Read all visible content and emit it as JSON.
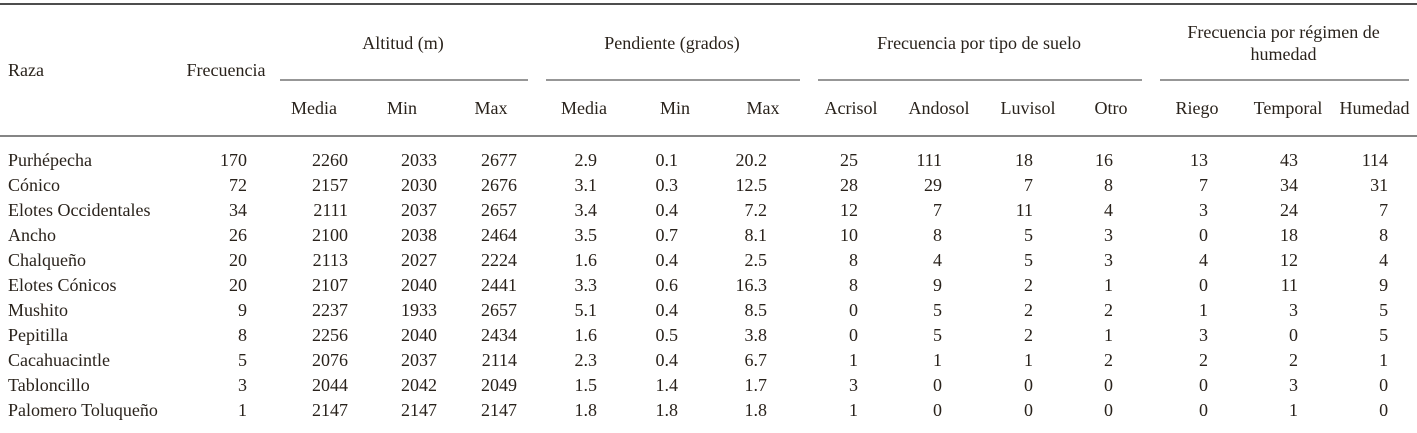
{
  "table": {
    "col_raza": "Raza",
    "col_frecuencia": "Frecuencia",
    "groups": [
      {
        "label": "Altitud (m)",
        "cols": [
          "Media",
          "Min",
          "Max"
        ]
      },
      {
        "label": "Pendiente (grados)",
        "cols": [
          "Media",
          "Min",
          "Max"
        ]
      },
      {
        "label": "Frecuencia por tipo de suelo",
        "cols": [
          "Acrisol",
          "Andosol",
          "Luvisol",
          "Otro"
        ]
      },
      {
        "label": "Frecuencia por régimen de humedad",
        "cols": [
          "Riego",
          "Temporal",
          "Humedad"
        ]
      }
    ],
    "rows": [
      [
        "Purhépecha",
        "170",
        "2260",
        "2033",
        "2677",
        "2.9",
        "0.1",
        "20.2",
        "25",
        "111",
        "18",
        "16",
        "13",
        "43",
        "114"
      ],
      [
        "Cónico",
        "72",
        "2157",
        "2030",
        "2676",
        "3.1",
        "0.3",
        "12.5",
        "28",
        "29",
        "7",
        "8",
        "7",
        "34",
        "31"
      ],
      [
        "Elotes Occidentales",
        "34",
        "2111",
        "2037",
        "2657",
        "3.4",
        "0.4",
        "7.2",
        "12",
        "7",
        "11",
        "4",
        "3",
        "24",
        "7"
      ],
      [
        "Ancho",
        "26",
        "2100",
        "2038",
        "2464",
        "3.5",
        "0.7",
        "8.1",
        "10",
        "8",
        "5",
        "3",
        "0",
        "18",
        "8"
      ],
      [
        "Chalqueño",
        "20",
        "2113",
        "2027",
        "2224",
        "1.6",
        "0.4",
        "2.5",
        "8",
        "4",
        "5",
        "3",
        "4",
        "12",
        "4"
      ],
      [
        "Elotes Cónicos",
        "20",
        "2107",
        "2040",
        "2441",
        "3.3",
        "0.6",
        "16.3",
        "8",
        "9",
        "2",
        "1",
        "0",
        "11",
        "9"
      ],
      [
        "Mushito",
        "9",
        "2237",
        "1933",
        "2657",
        "5.1",
        "0.4",
        "8.5",
        "0",
        "5",
        "2",
        "2",
        "1",
        "3",
        "5"
      ],
      [
        "Pepitilla",
        "8",
        "2256",
        "2040",
        "2434",
        "1.6",
        "0.5",
        "3.8",
        "0",
        "5",
        "2",
        "1",
        "3",
        "0",
        "5"
      ],
      [
        "Cacahuacintle",
        "5",
        "2076",
        "2037",
        "2114",
        "2.3",
        "0.4",
        "6.7",
        "1",
        "1",
        "1",
        "2",
        "2",
        "2",
        "1"
      ],
      [
        "Tabloncillo",
        "3",
        "2044",
        "2042",
        "2049",
        "1.5",
        "1.4",
        "1.7",
        "3",
        "0",
        "0",
        "0",
        "0",
        "3",
        "0"
      ],
      [
        "Palomero Toluqueño",
        "1",
        "2147",
        "2147",
        "2147",
        "1.8",
        "1.8",
        "1.8",
        "1",
        "0",
        "0",
        "0",
        "0",
        "1",
        "0"
      ]
    ]
  }
}
